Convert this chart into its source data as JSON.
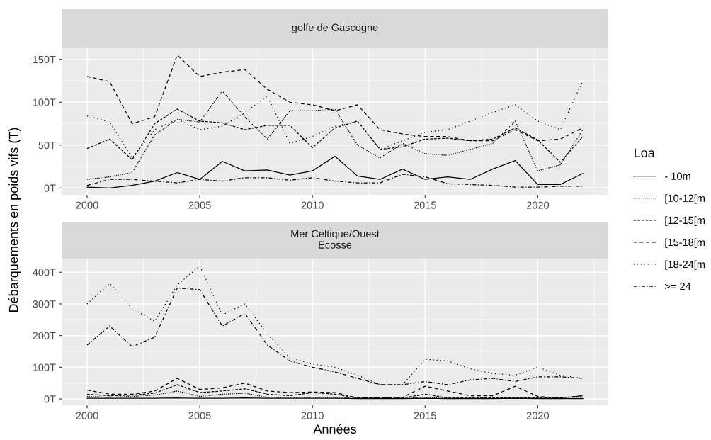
{
  "chart_data": [
    {
      "type": "line",
      "title": "golfe de Gascogne",
      "ylabel": "Débarquements en poids vifs (T)",
      "legend_title": "Loa",
      "legend": "right",
      "grid": true,
      "x": [
        2000,
        2001,
        2002,
        2003,
        2004,
        2005,
        2006,
        2007,
        2008,
        2009,
        2010,
        2011,
        2012,
        2013,
        2014,
        2015,
        2016,
        2017,
        2018,
        2019,
        2020,
        2021,
        2022
      ],
      "xlim": [
        1998.9,
        2023.1
      ],
      "xticks": [
        2000,
        2005,
        2010,
        2015,
        2020
      ],
      "ylim": [
        -8,
        163
      ],
      "yticks": [
        {
          "value": 0,
          "label": "0T"
        },
        {
          "value": 50,
          "label": "50T"
        },
        {
          "value": 100,
          "label": "100T"
        },
        {
          "value": 150,
          "label": "150T"
        }
      ],
      "series": [
        {
          "name": "- 10m",
          "color": "#000000",
          "line_style": "solid",
          "values": [
            1,
            0,
            3,
            8,
            18,
            10,
            31,
            20,
            21,
            15,
            20,
            37,
            14,
            10,
            22,
            10,
            13,
            10,
            22,
            32,
            4,
            4,
            17
          ]
        },
        {
          "name": "[10-12[m",
          "color": "#000000",
          "line_style": "dotted",
          "values": [
            10,
            13,
            18,
            62,
            80,
            77,
            113,
            83,
            57,
            90,
            90,
            92,
            50,
            35,
            52,
            40,
            38,
            45,
            52,
            78,
            20,
            27,
            68
          ]
        },
        {
          "name": "[12-15[m",
          "color": "#000000",
          "line_style": "dashed",
          "values": [
            46,
            57,
            33,
            75,
            92,
            78,
            76,
            68,
            73,
            73,
            47,
            70,
            78,
            45,
            48,
            57,
            58,
            55,
            57,
            70,
            56,
            30,
            60
          ]
        },
        {
          "name": "[15-18[m",
          "color": "#000000",
          "line_style": "longdash",
          "values": [
            130,
            124,
            75,
            83,
            155,
            130,
            135,
            138,
            115,
            100,
            97,
            90,
            97,
            68,
            63,
            60,
            60,
            55,
            55,
            68,
            55,
            57,
            70
          ]
        },
        {
          "name": "[18-24[m",
          "color": "#000000",
          "line_style": "sparse",
          "values": [
            84,
            77,
            35,
            68,
            80,
            68,
            72,
            88,
            107,
            52,
            60,
            72,
            78,
            45,
            55,
            65,
            68,
            78,
            88,
            97,
            78,
            68,
            125
          ]
        },
        {
          "name": ">= 24",
          "color": "#000000",
          "line_style": "dotdash",
          "values": [
            3,
            10,
            10,
            8,
            6,
            10,
            8,
            12,
            12,
            9,
            12,
            8,
            6,
            6,
            16,
            13,
            5,
            4,
            3,
            1,
            1,
            2,
            2
          ]
        }
      ]
    },
    {
      "type": "line",
      "title": "Mer Celtique/Ouest\nEcosse",
      "xlabel": "Années",
      "grid": true,
      "x": [
        2000,
        2001,
        2002,
        2003,
        2004,
        2005,
        2006,
        2007,
        2008,
        2009,
        2010,
        2011,
        2012,
        2013,
        2014,
        2015,
        2016,
        2017,
        2018,
        2019,
        2020,
        2021,
        2022
      ],
      "xlim": [
        1998.9,
        2023.1
      ],
      "xticks": [
        2000,
        2005,
        2010,
        2015,
        2020
      ],
      "ylim": [
        -20,
        443
      ],
      "yticks": [
        {
          "value": 0,
          "label": "0T"
        },
        {
          "value": 100,
          "label": "100T"
        },
        {
          "value": 200,
          "label": "200T"
        },
        {
          "value": 300,
          "label": "300T"
        },
        {
          "value": 400,
          "label": "400T"
        }
      ],
      "series": [
        {
          "color": "#000000",
          "line_style": "solid",
          "values": [
            2,
            2,
            2,
            2,
            3,
            2,
            2,
            3,
            2,
            2,
            2,
            2,
            1,
            1,
            1,
            2,
            1,
            1,
            1,
            2,
            1,
            1,
            1
          ]
        },
        {
          "color": "#000000",
          "line_style": "dotted",
          "values": [
            8,
            5,
            8,
            12,
            25,
            8,
            15,
            18,
            5,
            5,
            5,
            5,
            2,
            2,
            2,
            5,
            2,
            2,
            2,
            2,
            2,
            2,
            2
          ]
        },
        {
          "color": "#000000",
          "line_style": "dashed",
          "values": [
            15,
            10,
            12,
            18,
            45,
            20,
            25,
            32,
            15,
            10,
            20,
            15,
            3,
            3,
            3,
            15,
            3,
            3,
            3,
            3,
            3,
            3,
            10
          ]
        },
        {
          "color": "#000000",
          "line_style": "longdash",
          "values": [
            28,
            15,
            15,
            25,
            65,
            30,
            35,
            50,
            25,
            20,
            22,
            20,
            3,
            3,
            5,
            40,
            25,
            10,
            10,
            40,
            8,
            3,
            10
          ]
        },
        {
          "color": "#000000",
          "line_style": "sparse",
          "values": [
            300,
            365,
            285,
            245,
            360,
            420,
            265,
            300,
            205,
            130,
            110,
            100,
            75,
            45,
            45,
            125,
            120,
            95,
            80,
            75,
            100,
            75,
            65
          ]
        },
        {
          "color": "#000000",
          "line_style": "dotdash",
          "values": [
            170,
            230,
            165,
            195,
            350,
            345,
            230,
            270,
            170,
            120,
            100,
            85,
            65,
            45,
            45,
            55,
            45,
            60,
            65,
            55,
            70,
            70,
            65
          ]
        }
      ]
    }
  ]
}
